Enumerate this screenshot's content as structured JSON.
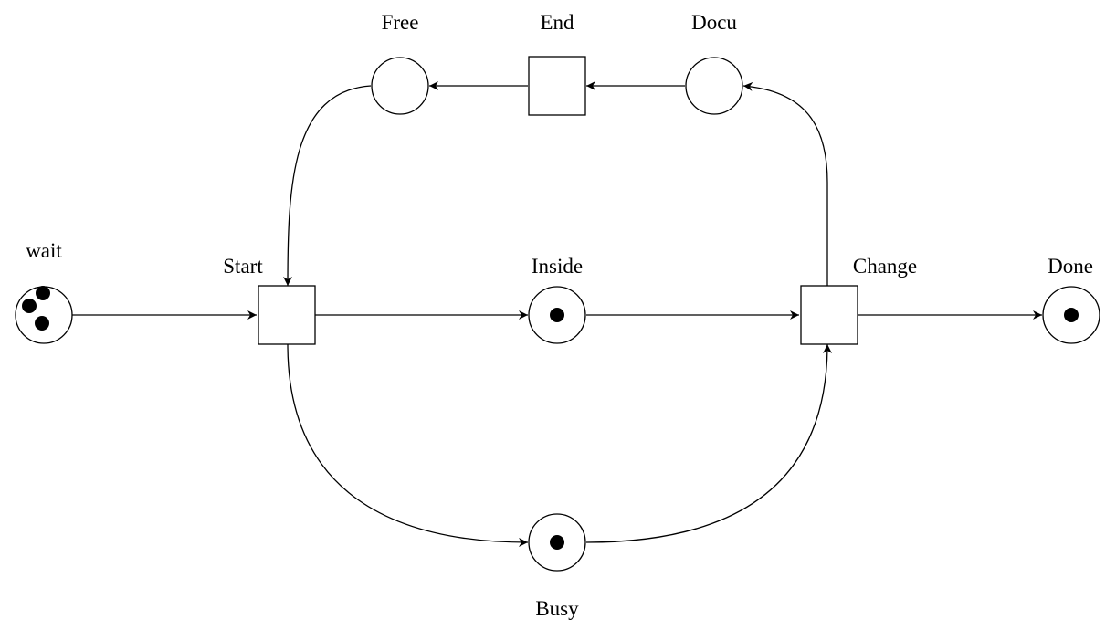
{
  "petri_net": {
    "places": [
      {
        "id": "wait",
        "label": "wait",
        "tokens": 3
      },
      {
        "id": "inside",
        "label": "Inside",
        "tokens": 1
      },
      {
        "id": "done",
        "label": "Done",
        "tokens": 1
      },
      {
        "id": "busy",
        "label": "Busy",
        "tokens": 1
      },
      {
        "id": "free",
        "label": "Free",
        "tokens": 0
      },
      {
        "id": "docu",
        "label": "Docu",
        "tokens": 0
      }
    ],
    "transitions": [
      {
        "id": "start",
        "label": "Start"
      },
      {
        "id": "change",
        "label": "Change"
      },
      {
        "id": "end",
        "label": "End"
      }
    ],
    "arcs": [
      {
        "from": "wait",
        "to": "start"
      },
      {
        "from": "start",
        "to": "inside"
      },
      {
        "from": "start",
        "to": "busy"
      },
      {
        "from": "inside",
        "to": "change"
      },
      {
        "from": "busy",
        "to": "change"
      },
      {
        "from": "change",
        "to": "done"
      },
      {
        "from": "change",
        "to": "docu"
      },
      {
        "from": "docu",
        "to": "end"
      },
      {
        "from": "end",
        "to": "free"
      },
      {
        "from": "free",
        "to": "start"
      }
    ]
  }
}
